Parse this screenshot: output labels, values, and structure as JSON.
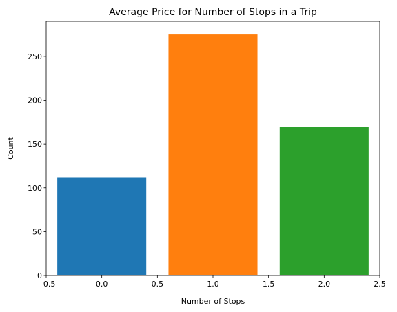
{
  "chart_data": {
    "type": "bar",
    "title": "Average Price for Number of Stops in a Trip",
    "xlabel": "Number of Stops",
    "ylabel": "Count",
    "x": [
      0,
      1,
      2
    ],
    "values": [
      112,
      275,
      169
    ],
    "bar_width": 0.8,
    "colors": [
      "#1f77b4",
      "#ff7f0e",
      "#2ca02c"
    ],
    "xlim": [
      -0.5,
      2.5
    ],
    "ylim": [
      0,
      290
    ],
    "xticks": [
      -0.5,
      0.0,
      0.5,
      1.0,
      1.5,
      2.0,
      2.5
    ],
    "xtick_labels": [
      "−0.5",
      "0.0",
      "0.5",
      "1.0",
      "1.5",
      "2.0",
      "2.5"
    ],
    "yticks": [
      0,
      50,
      100,
      150,
      200,
      250
    ],
    "ytick_labels": [
      "0",
      "50",
      "100",
      "150",
      "200",
      "250"
    ],
    "grid": false,
    "legend": "none"
  }
}
